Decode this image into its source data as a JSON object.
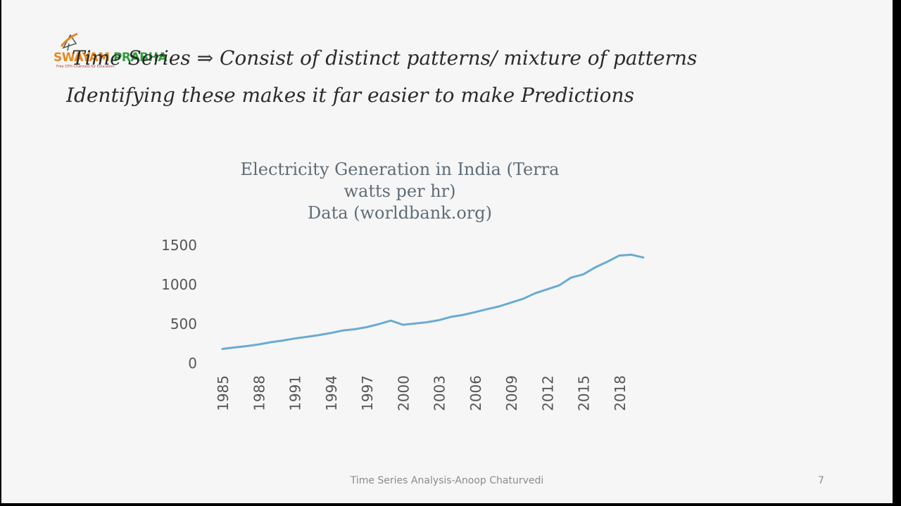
{
  "logo": {
    "text_part1": "SWAYAM ",
    "text_part2": "PRABHA",
    "tagline": "Free DTH Channels for Education"
  },
  "slide": {
    "line1": "Time Series ⇒ Consist of distinct patterns/ mixture of patterns",
    "line2": "Identifying these makes it far easier to make Predictions",
    "footer": "Time Series Analysis-Anoop Chaturvedi",
    "page_number": "7"
  },
  "colors": {
    "line": "#6aabd2",
    "axis_text": "#555555",
    "title": "#5e6d78"
  },
  "chart_data": {
    "type": "line",
    "title_lines": [
      "Electricity Generation in India (Terra",
      "watts per hr)",
      "Data (worldbank.org)"
    ],
    "x": [
      1985,
      1986,
      1987,
      1988,
      1989,
      1990,
      1991,
      1992,
      1993,
      1994,
      1995,
      1996,
      1997,
      1998,
      1999,
      2000,
      2001,
      2002,
      2003,
      2004,
      2005,
      2006,
      2007,
      2008,
      2009,
      2010,
      2011,
      2012,
      2013,
      2014,
      2015,
      2016,
      2017,
      2018,
      2019,
      2020
    ],
    "x_tick_labels": [
      "1985",
      "1988",
      "1991",
      "1994",
      "1997",
      "2000",
      "2003",
      "2006",
      "2009",
      "2012",
      "2015",
      "2018"
    ],
    "series": [
      {
        "values": [
          183,
          202,
          219,
          240,
          268,
          289,
          315,
          336,
          358,
          385,
          417,
          433,
          460,
          498,
          543,
          490,
          505,
          522,
          548,
          590,
          615,
          650,
          688,
          723,
          771,
          820,
          890,
          940,
          990,
          1090,
          1130,
          1220,
          1290,
          1370,
          1380,
          1345
        ]
      }
    ],
    "y_ticks": [
      0,
      500,
      1000,
      1500
    ],
    "ylim": [
      0,
      1500
    ],
    "grid": false,
    "legend": "none",
    "xlabel": "",
    "ylabel": ""
  }
}
